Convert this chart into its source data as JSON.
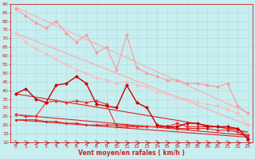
{
  "background_color": "#c8eef0",
  "grid_color": "#aadddd",
  "xlabel": "Vent moyen/en rafales ( km/h )",
  "xlim": [
    -0.5,
    23.5
  ],
  "ylim": [
    10,
    90
  ],
  "yticks": [
    10,
    15,
    20,
    25,
    30,
    35,
    40,
    45,
    50,
    55,
    60,
    65,
    70,
    75,
    80,
    85,
    90
  ],
  "xticks": [
    0,
    1,
    2,
    3,
    4,
    5,
    6,
    7,
    8,
    9,
    10,
    11,
    12,
    13,
    14,
    15,
    16,
    17,
    18,
    19,
    20,
    21,
    22,
    23
  ],
  "line_straight1": {
    "x": [
      0,
      23
    ],
    "y": [
      88,
      27
    ],
    "color": "#ffaaaa",
    "lw": 0.8
  },
  "line_straight2": {
    "x": [
      0,
      23
    ],
    "y": [
      73,
      20
    ],
    "color": "#ffaaaa",
    "lw": 0.8
  },
  "line_straight3": {
    "x": [
      0,
      23
    ],
    "y": [
      38,
      16
    ],
    "color": "#dd2222",
    "lw": 0.8
  },
  "line_straight4": {
    "x": [
      0,
      23
    ],
    "y": [
      26,
      14
    ],
    "color": "#dd2222",
    "lw": 0.8
  },
  "line_straight5": {
    "x": [
      0,
      23
    ],
    "y": [
      23,
      13
    ],
    "color": "#dd2222",
    "lw": 0.8
  },
  "series_pink_upper": {
    "x": [
      0,
      1,
      2,
      3,
      4,
      5,
      6,
      7,
      8,
      9,
      10,
      11,
      12,
      13,
      14,
      15,
      16,
      17,
      18,
      19,
      20,
      21,
      22,
      23
    ],
    "y": [
      87,
      83,
      79,
      76,
      80,
      73,
      68,
      72,
      62,
      65,
      52,
      72,
      53,
      50,
      48,
      46,
      46,
      44,
      44,
      43,
      42,
      44,
      31,
      27
    ],
    "color": "#ff9999",
    "marker": "D",
    "ms": 2.0,
    "lw": 0.8
  },
  "series_pink_lower": {
    "x": [
      0,
      1,
      2,
      3,
      4,
      5,
      6,
      7,
      8,
      9,
      10,
      11,
      12,
      13,
      14,
      15,
      16,
      17,
      18,
      19,
      20,
      21,
      22,
      23
    ],
    "y": [
      73,
      68,
      64,
      61,
      58,
      55,
      52,
      50,
      47,
      46,
      44,
      45,
      43,
      42,
      39,
      38,
      36,
      35,
      33,
      32,
      31,
      29,
      27,
      20
    ],
    "color": "#ffbbbb",
    "marker": "D",
    "ms": 2.0,
    "lw": 0.8
  },
  "series_red_main": {
    "x": [
      0,
      1,
      2,
      3,
      4,
      5,
      6,
      7,
      8,
      9,
      10,
      11,
      12,
      13,
      14,
      15,
      16,
      17,
      18,
      19,
      20,
      21,
      22,
      23
    ],
    "y": [
      38,
      41,
      35,
      33,
      43,
      44,
      48,
      44,
      32,
      31,
      30,
      43,
      33,
      30,
      20,
      19,
      19,
      21,
      21,
      19,
      19,
      19,
      18,
      12
    ],
    "color": "#cc0000",
    "marker": "D",
    "ms": 2.0,
    "lw": 1.0
  },
  "series_red_mid": {
    "x": [
      0,
      1,
      2,
      3,
      4,
      5,
      6,
      7,
      8,
      9,
      10,
      11,
      12,
      13,
      14,
      15,
      16,
      17,
      18,
      19,
      20,
      21,
      22,
      23
    ],
    "y": [
      26,
      25,
      25,
      33,
      34,
      33,
      34,
      33,
      34,
      32,
      19,
      19,
      19,
      19,
      19,
      19,
      21,
      19,
      19,
      19,
      19,
      18,
      18,
      14
    ],
    "color": "#ee3333",
    "marker": "D",
    "ms": 2.0,
    "lw": 0.8
  },
  "series_red_low": {
    "x": [
      0,
      1,
      2,
      3,
      4,
      5,
      6,
      7,
      8,
      9,
      10,
      11,
      12,
      13,
      14,
      15,
      16,
      17,
      18,
      19,
      20,
      21,
      22,
      23
    ],
    "y": [
      23,
      23,
      23,
      22,
      22,
      21,
      21,
      20,
      20,
      20,
      20,
      20,
      19,
      19,
      19,
      19,
      18,
      18,
      18,
      18,
      17,
      17,
      16,
      13
    ],
    "color": "#dd2222",
    "marker": "D",
    "ms": 1.5,
    "lw": 0.8
  },
  "arrow_color": "#cc2222",
  "title_color": "#cc2222",
  "tick_color": "#cc2222",
  "axis_color": "#cc2222",
  "tick_fontsize": 4.5,
  "xlabel_fontsize": 5.5
}
